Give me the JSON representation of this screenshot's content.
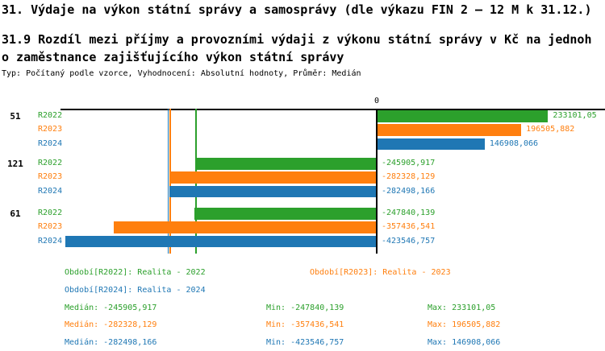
{
  "header": {
    "title": "31. Výdaje na výkon státní správy a samosprávy (dle výkazu FIN 2 – 12 M k 31.12.)",
    "subtitle": "31.9 Rozdíl mezi příjmy a provozními výdaji z výkonu státní správy v Kč na jednoho zaměstnance zajišťujícího výkon státní správy",
    "meta": "Typ: Počítaný podle vzorce, Vyhodnocení: Absolutní hodnoty, Průměr: Medián"
  },
  "colors": {
    "R2022": "#2CA02C",
    "R2023": "#FF7F0E",
    "R2024": "#1F77B4",
    "axis": "#000000",
    "background": "#FFFFFF"
  },
  "chart_data": {
    "type": "bar",
    "orientation": "horizontal",
    "zero_label": "0",
    "categories": [
      "51",
      "121",
      "61"
    ],
    "series": [
      {
        "name": "R2022",
        "color": "#2CA02C",
        "values": [
          233101.05,
          -245905.917,
          -247840.139
        ],
        "value_labels": [
          "233101,05",
          "-245905,917",
          "-247840,139"
        ]
      },
      {
        "name": "R2023",
        "color": "#FF7F0E",
        "values": [
          196505.882,
          -282328.129,
          -357436.541
        ],
        "value_labels": [
          "196505,882",
          "-282328,129",
          "-357436,541"
        ]
      },
      {
        "name": "R2024",
        "color": "#1F77B4",
        "values": [
          146908.066,
          -282498.166,
          -423546.757
        ],
        "value_labels": [
          "146908,066",
          "-282498,166",
          "-423546,757"
        ]
      }
    ],
    "median_lines": [
      {
        "series": "R2022",
        "value": -245905.917
      },
      {
        "series": "R2023",
        "value": -282328.129
      },
      {
        "series": "R2024",
        "value": -282498.166
      }
    ],
    "xlim": [
      -445000,
      310000
    ],
    "grid": false,
    "legend_position": "bottom"
  },
  "legend": {
    "periods": [
      {
        "series": "R2022",
        "text": "Období[R2022]: Realita - 2022"
      },
      {
        "series": "R2023",
        "text": "Období[R2023]: Realita - 2023"
      },
      {
        "series": "R2024",
        "text": "Období[R2024]: Realita - 2024"
      }
    ],
    "stats": [
      {
        "series": "R2022",
        "median": "Medián: -245905,917",
        "min": "Min: -247840,139",
        "max": "Max: 233101,05"
      },
      {
        "series": "R2023",
        "median": "Medián: -282328,129",
        "min": "Min: -357436,541",
        "max": "Max: 196505,882"
      },
      {
        "series": "R2024",
        "median": "Medián: -282498,166",
        "min": "Min: -423546,757",
        "max": "Max: 146908,066"
      }
    ]
  }
}
